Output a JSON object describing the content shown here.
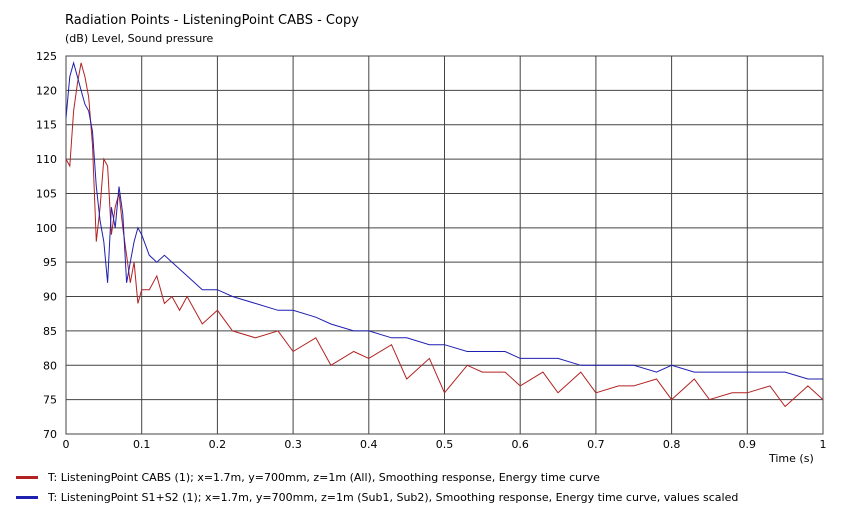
{
  "chart_data": {
    "type": "line",
    "title": "Radiation Points - ListeningPoint CABS - Copy",
    "ylabel": "(dB)  Level, Sound pressure",
    "xlabel": "Time  (s)",
    "xlim": [
      0,
      1
    ],
    "ylim": [
      70,
      125
    ],
    "xticks": [
      "0",
      "0.1",
      "0.2",
      "0.3",
      "0.4",
      "0.5",
      "0.6",
      "0.7",
      "0.8",
      "0.9",
      "1"
    ],
    "yticks": [
      "70",
      "75",
      "80",
      "85",
      "90",
      "95",
      "100",
      "105",
      "110",
      "115",
      "120",
      "125"
    ],
    "grid": true,
    "legend_position": "bottom",
    "series": [
      {
        "name": "T: ListeningPoint CABS (1); x=1.7m, y=700mm, z=1m  (All), Smoothing response, Energy time curve",
        "color": "#b22222",
        "x": [
          0.0,
          0.005,
          0.01,
          0.015,
          0.02,
          0.025,
          0.03,
          0.035,
          0.04,
          0.045,
          0.05,
          0.055,
          0.06,
          0.065,
          0.07,
          0.075,
          0.08,
          0.085,
          0.09,
          0.095,
          0.1,
          0.11,
          0.12,
          0.13,
          0.14,
          0.15,
          0.16,
          0.18,
          0.2,
          0.22,
          0.25,
          0.28,
          0.3,
          0.33,
          0.35,
          0.38,
          0.4,
          0.43,
          0.45,
          0.48,
          0.5,
          0.53,
          0.55,
          0.58,
          0.6,
          0.63,
          0.65,
          0.68,
          0.7,
          0.73,
          0.75,
          0.78,
          0.8,
          0.83,
          0.85,
          0.88,
          0.9,
          0.93,
          0.95,
          0.98,
          1.0
        ],
        "values": [
          110,
          109,
          117,
          121,
          124,
          122,
          119,
          112,
          98,
          103,
          110,
          109,
          99,
          103,
          105,
          100,
          96,
          92,
          95,
          89,
          91,
          91,
          93,
          89,
          90,
          88,
          90,
          86,
          88,
          85,
          84,
          85,
          82,
          84,
          80,
          82,
          81,
          83,
          78,
          81,
          76,
          80,
          79,
          79,
          77,
          79,
          76,
          79,
          76,
          77,
          77,
          78,
          75,
          78,
          75,
          76,
          76,
          77,
          74,
          77,
          75
        ]
      },
      {
        "name": "T: ListeningPoint S1+S2 (1); x=1.7m, y=700mm, z=1m  (Sub1, Sub2), Smoothing response, Energy time curve, values scaled",
        "color": "#1f1fb0",
        "x": [
          0.0,
          0.005,
          0.01,
          0.015,
          0.02,
          0.025,
          0.03,
          0.035,
          0.04,
          0.045,
          0.05,
          0.055,
          0.06,
          0.065,
          0.07,
          0.075,
          0.08,
          0.085,
          0.09,
          0.095,
          0.1,
          0.11,
          0.12,
          0.13,
          0.14,
          0.15,
          0.16,
          0.18,
          0.2,
          0.22,
          0.25,
          0.28,
          0.3,
          0.33,
          0.35,
          0.38,
          0.4,
          0.43,
          0.45,
          0.48,
          0.5,
          0.53,
          0.55,
          0.58,
          0.6,
          0.63,
          0.65,
          0.68,
          0.7,
          0.73,
          0.75,
          0.78,
          0.8,
          0.83,
          0.85,
          0.88,
          0.9,
          0.93,
          0.95,
          0.98,
          1.0
        ],
        "values": [
          116,
          122,
          124,
          122,
          120,
          118,
          117,
          114,
          106,
          101,
          98,
          92,
          103,
          100,
          106,
          102,
          92,
          95,
          98,
          100,
          99,
          96,
          95,
          96,
          95,
          94,
          93,
          91,
          91,
          90,
          89,
          88,
          88,
          87,
          86,
          85,
          85,
          84,
          84,
          83,
          83,
          82,
          82,
          82,
          81,
          81,
          81,
          80,
          80,
          80,
          80,
          79,
          80,
          79,
          79,
          79,
          79,
          79,
          79,
          78,
          78
        ]
      }
    ]
  }
}
